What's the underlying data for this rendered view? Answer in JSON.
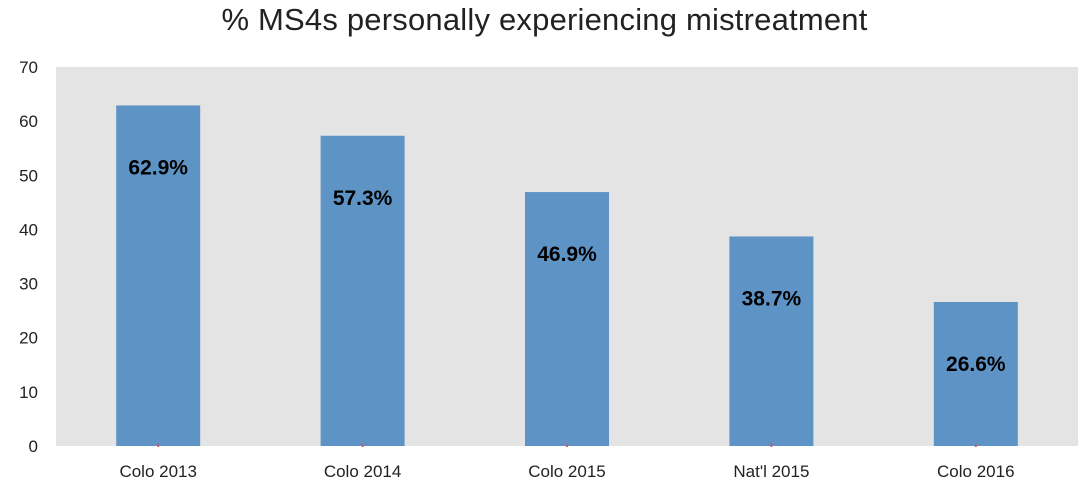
{
  "chart_data": {
    "type": "bar",
    "title": "% MS4s personally experiencing mistreatment",
    "xlabel": "",
    "ylabel": "",
    "categories": [
      "Colo 2013",
      "Colo 2014",
      "Colo 2015",
      "Nat'l 2015",
      "Colo 2016"
    ],
    "values": [
      62.9,
      57.3,
      46.9,
      38.7,
      26.6
    ],
    "data_labels": [
      "62.9%",
      "57.3%",
      "46.9%",
      "38.7%",
      "26.6%"
    ],
    "ylim": [
      0,
      70
    ],
    "yticks": [
      0,
      10,
      20,
      30,
      40,
      50,
      60,
      70
    ],
    "grid": false,
    "legend": "none"
  },
  "colors": {
    "bar": "#5e93c6",
    "plot_background": "#e4e4e4",
    "tick_marks": "#c0606a"
  }
}
